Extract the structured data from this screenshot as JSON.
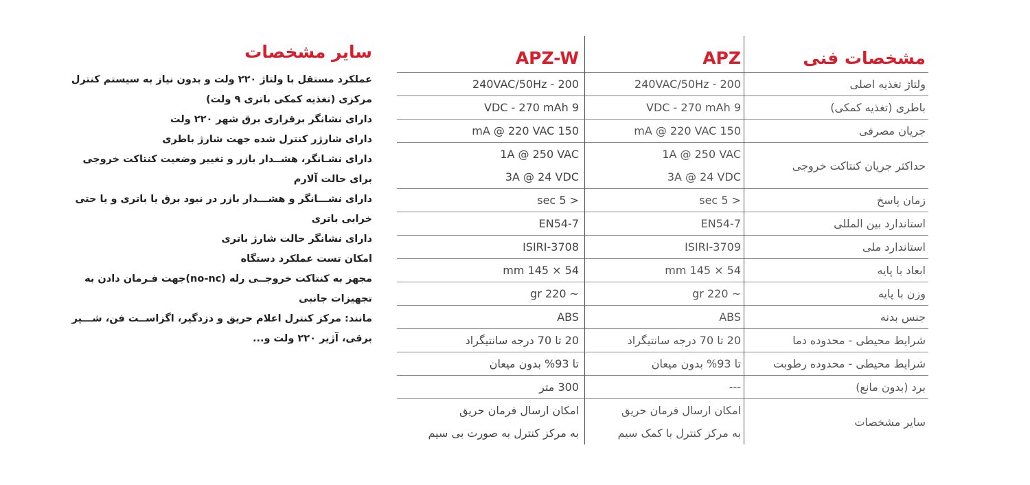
{
  "other_specs": {
    "title": "سایر مشخصات",
    "lines": [
      "عملکرد مستقل با ولتاژ ۲۲۰ ولت و بدون نیاز به سیستم کنترل",
      "مرکزی (تغذیه کمکی باتری ۹ ولت)",
      "دارای نشانگر برقراری برق شهر ۲۲۰ ولت",
      "دارای شارژر کنترل شده جهت شارژ باطری",
      "دارای نشـانگر، هشــدار بازر و تغییر وضعیت کنتاکت خروجی",
      "برای حالت آلارم",
      "دارای نشـــانگر و هشـــدار بازر در نبود برق یا باتری و یا حتی",
      "خرابی باتری",
      "دارای نشانگر حالت شارژ باتری",
      "امکان تست عملکرد دستگاه",
      "مجهز به کنتاکت خروجــی رله (no-nc)جهت   فـرمان دادن به",
      "تجهیزات جانبی",
      "مانند: مرکز کنترل اعلام حریق و دزدگیر، اگزاســت فن، شـــیر",
      "برقی، آژیر ۲۲۰ ولت و..."
    ]
  },
  "spec_table": {
    "headers": [
      "مشخصات فنی",
      "APZ",
      "APZ-W"
    ],
    "rows": [
      {
        "label": "ولتاژ تغذیه اصلی",
        "apz": [
          "200 - 240VAC/50Hz"
        ],
        "apzw": [
          "200 - 240VAC/50Hz"
        ]
      },
      {
        "label": "باطری (تغذیه کمکی)",
        "apz": [
          "9 VDC - 270 mAh"
        ],
        "apzw": [
          "9 VDC - 270 mAh"
        ]
      },
      {
        "label": "جریان مصرفی",
        "apz": [
          "150 mA @ 220 VAC"
        ],
        "apzw": [
          "150 mA @ 220 VAC"
        ]
      },
      {
        "label": "حداکثر جریان کنتاکت خروجی",
        "apz": [
          "1A @ 250 VAC",
          "3A @ 24 VDC"
        ],
        "apzw": [
          "1A @ 250 VAC",
          "3A @ 24 VDC"
        ]
      },
      {
        "label": "زمان پاسخ",
        "apz": [
          "< 5 sec"
        ],
        "apzw": [
          "< 5 sec"
        ]
      },
      {
        "label": "استاندارد بین المللی",
        "apz": [
          "EN54-7"
        ],
        "apzw": [
          "EN54-7"
        ]
      },
      {
        "label": "استاندارد ملی",
        "apz": [
          "ISIRI-3709"
        ],
        "apzw": [
          "ISIRI-3708"
        ]
      },
      {
        "label": "ابعاد با پایه",
        "apz": [
          "54 × 145 mm"
        ],
        "apzw": [
          "54 × 145 mm"
        ]
      },
      {
        "label": "وزن با پایه",
        "apz": [
          "~ 220 gr"
        ],
        "apzw": [
          "~ 220 gr"
        ]
      },
      {
        "label": "جنس بدنه",
        "apz": [
          "ABS"
        ],
        "apzw": [
          "ABS"
        ]
      },
      {
        "label": "شرایط محیطی - محدوده دما",
        "apz": [
          "20 تا 70 درجه سانتیگراد"
        ],
        "apzw": [
          "20 تا 70 درجه سانتیگراد"
        ]
      },
      {
        "label": "شرایط محیطی - محدوده رطوبت",
        "apz": [
          "تا 93% بدون میعان"
        ],
        "apzw": [
          "تا 93% بدون میعان"
        ]
      },
      {
        "label": "برد (بدون مانع)",
        "apz": [
          "---"
        ],
        "apzw": [
          "300 متر"
        ]
      },
      {
        "label": "سایر مشخصات",
        "apz": [
          "امکان ارسال فرمان حریق",
          "به مرکز کنترل با کمک سیم"
        ],
        "apzw": [
          "امکان ارسال فرمان حریق",
          "به مرکز کنترل به صورت بی سیم"
        ]
      }
    ]
  },
  "colors": {
    "accent": "#d81e2c",
    "text": "#555555"
  }
}
